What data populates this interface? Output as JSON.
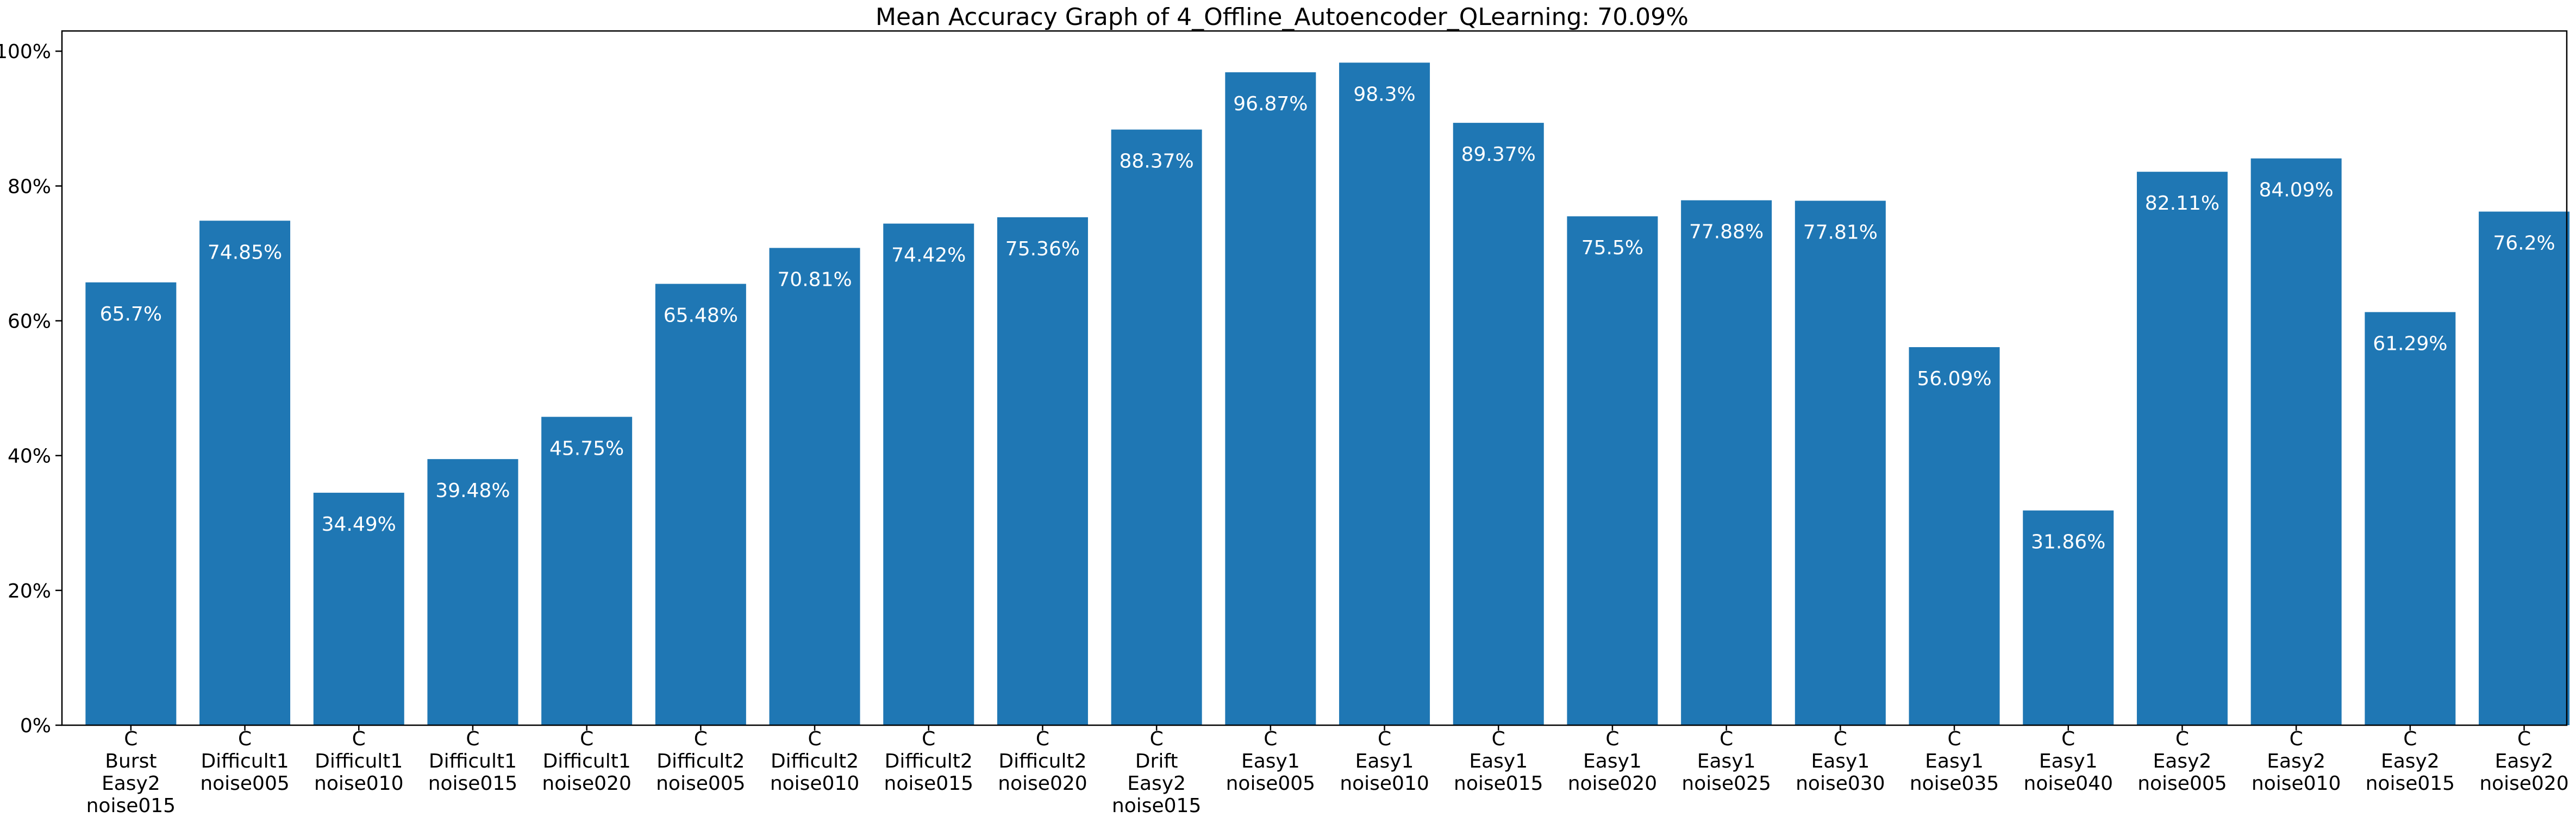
{
  "chart_data": {
    "type": "bar",
    "title": "Mean Accuracy Graph of 4_Offline_Autoencoder_QLearning: 70.09%",
    "xlabel": "",
    "ylabel": "",
    "ylim": [
      0,
      103
    ],
    "yticks": [
      0,
      20,
      40,
      60,
      80,
      100
    ],
    "ytick_labels": [
      "0%",
      "20%",
      "40%",
      "60%",
      "80%",
      "100%"
    ],
    "bar_color": "#1f77b4",
    "label_color": "#ffffff",
    "grid": false,
    "categories": [
      [
        "C",
        "Burst",
        "Easy2",
        "noise015"
      ],
      [
        "C",
        "Difficult1",
        "noise005"
      ],
      [
        "C",
        "Difficult1",
        "noise010"
      ],
      [
        "C",
        "Difficult1",
        "noise015"
      ],
      [
        "C",
        "Difficult1",
        "noise020"
      ],
      [
        "C",
        "Difficult2",
        "noise005"
      ],
      [
        "C",
        "Difficult2",
        "noise010"
      ],
      [
        "C",
        "Difficult2",
        "noise015"
      ],
      [
        "C",
        "Difficult2",
        "noise020"
      ],
      [
        "C",
        "Drift",
        "Easy2",
        "noise015"
      ],
      [
        "C",
        "Easy1",
        "noise005"
      ],
      [
        "C",
        "Easy1",
        "noise010"
      ],
      [
        "C",
        "Easy1",
        "noise015"
      ],
      [
        "C",
        "Easy1",
        "noise020"
      ],
      [
        "C",
        "Easy1",
        "noise025"
      ],
      [
        "C",
        "Easy1",
        "noise030"
      ],
      [
        "C",
        "Easy1",
        "noise035"
      ],
      [
        "C",
        "Easy1",
        "noise040"
      ],
      [
        "C",
        "Easy2",
        "noise005"
      ],
      [
        "C",
        "Easy2",
        "noise010"
      ],
      [
        "C",
        "Easy2",
        "noise015"
      ],
      [
        "C",
        "Easy2",
        "noise020"
      ]
    ],
    "values": [
      65.7,
      74.85,
      34.49,
      39.48,
      45.75,
      65.48,
      70.81,
      74.42,
      75.36,
      88.37,
      96.87,
      98.3,
      89.37,
      75.5,
      77.88,
      77.81,
      56.09,
      31.86,
      82.11,
      84.09,
      61.29,
      76.2
    ],
    "data_labels": [
      "65.7%",
      "74.85%",
      "34.49%",
      "39.48%",
      "45.75%",
      "65.48%",
      "70.81%",
      "74.42%",
      "75.36%",
      "88.37%",
      "96.87%",
      "98.3%",
      "89.37%",
      "75.5%",
      "77.88%",
      "77.81%",
      "56.09%",
      "31.86%",
      "82.11%",
      "84.09%",
      "61.29%",
      "76.2%"
    ]
  }
}
